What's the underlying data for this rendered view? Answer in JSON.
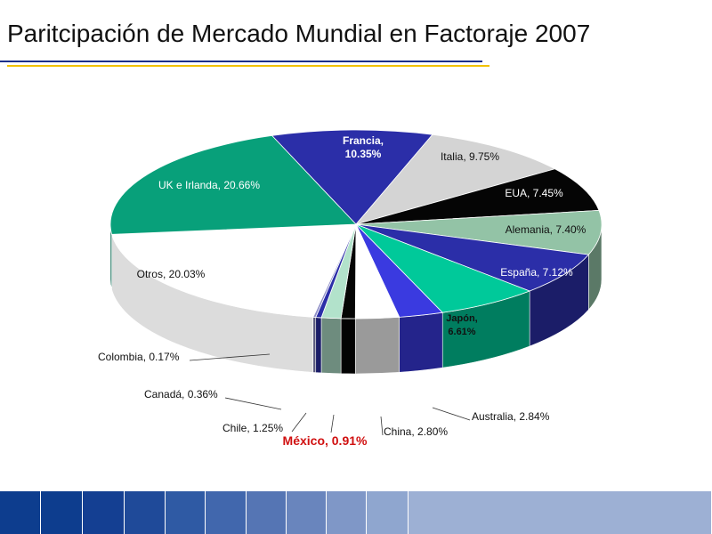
{
  "title": "Paritcipación de Mercado Mundial en Factoraje 2007",
  "colors": {
    "rule_top": "#1a2f8a",
    "rule_bottom": "#f2c200",
    "highlight": "#d01010"
  },
  "chart_data": {
    "type": "pie",
    "three_d": true,
    "slices": [
      {
        "label": "Francia, 10.35%",
        "name": "Francia",
        "value": 10.35,
        "color": "#2b2ea8",
        "label_color": "#ffffff",
        "bold": true,
        "label_inside": true
      },
      {
        "label": "Italia, 9.75%",
        "name": "Italia",
        "value": 9.75,
        "color": "#d4d4d4",
        "label_color": "#111111",
        "bold": false,
        "label_inside": true
      },
      {
        "label": "EUA, 7.45%",
        "name": "EUA",
        "value": 7.45,
        "color": "#050505",
        "label_color": "#ffffff",
        "bold": false,
        "label_inside": true
      },
      {
        "label": "Alemania, 7.40%",
        "name": "Alemania",
        "value": 7.4,
        "color": "#93c3a6",
        "label_color": "#111111",
        "bold": false,
        "label_inside": true
      },
      {
        "label": "España, 7.12%",
        "name": "España",
        "value": 7.12,
        "color": "#2b2ea8",
        "label_color": "#ffffff",
        "bold": false,
        "label_inside": true
      },
      {
        "label": "Japón, 6.61%",
        "name": "Japón",
        "value": 6.61,
        "color": "#00c99a",
        "label_color": "#111111",
        "bold": true,
        "label_inside": true
      },
      {
        "label": "Australia, 2.84%",
        "name": "Australia",
        "value": 2.84,
        "color": "#3a3ae0",
        "label_color": "#111111",
        "bold": false,
        "label_inside": false
      },
      {
        "label": "China, 2.80%",
        "name": "China",
        "value": 2.8,
        "color": "#ffffff",
        "label_color": "#111111",
        "bold": false,
        "label_inside": false
      },
      {
        "label": "México, 0.91%",
        "name": "México",
        "value": 0.91,
        "color": "#050505",
        "label_color": "#d01010",
        "bold": true,
        "label_inside": false
      },
      {
        "label": "Chile, 1.25%",
        "name": "Chile",
        "value": 1.25,
        "color": "#b2e2cb",
        "label_color": "#111111",
        "bold": false,
        "label_inside": false
      },
      {
        "label": "Canadá, 0.36%",
        "name": "Canadá",
        "value": 0.36,
        "color": "#2b2ea8",
        "label_color": "#111111",
        "bold": false,
        "label_inside": false
      },
      {
        "label": "Colombia, 0.17%",
        "name": "Colombia",
        "value": 0.17,
        "color": "#9090c8",
        "label_color": "#111111",
        "bold": false,
        "label_inside": false
      },
      {
        "label": "Otros, 20.03%",
        "name": "Otros",
        "value": 20.03,
        "color": "#ffffff",
        "label_color": "#111111",
        "bold": false,
        "label_inside": true
      },
      {
        "label": "UK e Irlanda, 20.66%",
        "name": "UK e Irlanda",
        "value": 20.66,
        "color": "#08a07a",
        "label_color": "#ffffff",
        "bold": false,
        "label_inside": true
      }
    ]
  },
  "footer": {
    "colors": [
      "#0d3d8e",
      "#0d3d8e",
      "#143f92",
      "#1f4a99",
      "#2f5aa4",
      "#4167ad",
      "#5575b4",
      "#6985bd",
      "#7f97c7",
      "#8fa6cf",
      "#9db0d4"
    ]
  }
}
